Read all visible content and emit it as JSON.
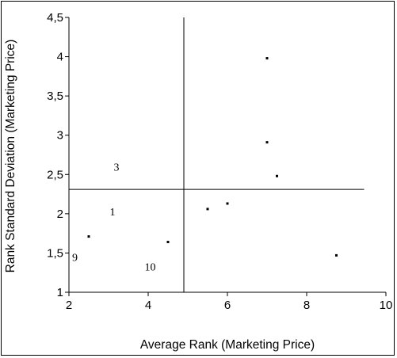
{
  "chart_data": {
    "type": "scatter",
    "xlabel": "Average Rank (Marketing Price)",
    "ylabel": "Rank Standard Deviation (Marketing Price)",
    "xlim": [
      2,
      10
    ],
    "ylim": [
      1,
      4.5
    ],
    "x_ticks": [
      {
        "value": 2,
        "label": "2"
      },
      {
        "value": 4,
        "label": "4"
      },
      {
        "value": 6,
        "label": "6"
      },
      {
        "value": 8,
        "label": "8"
      },
      {
        "value": 10,
        "label": "10"
      }
    ],
    "y_ticks": [
      {
        "value": 1,
        "label": "1"
      },
      {
        "value": 1.5,
        "label": "1,5"
      },
      {
        "value": 2,
        "label": "2"
      },
      {
        "value": 2.5,
        "label": "2,5"
      },
      {
        "value": 3,
        "label": "3"
      },
      {
        "value": 3.5,
        "label": "3,5"
      },
      {
        "value": 4,
        "label": "4"
      },
      {
        "value": 4.5,
        "label": "4,5"
      }
    ],
    "points": [
      {
        "x": 2.5,
        "y": 1.71
      },
      {
        "x": 4.5,
        "y": 1.64
      },
      {
        "x": 5.5,
        "y": 2.06
      },
      {
        "x": 6.0,
        "y": 2.13
      },
      {
        "x": 7.0,
        "y": 3.98
      },
      {
        "x": 7.0,
        "y": 2.91
      },
      {
        "x": 7.25,
        "y": 2.48
      },
      {
        "x": 8.75,
        "y": 1.47
      }
    ],
    "reference_lines": {
      "vertical_x": 4.9,
      "horizontal_y": 2.31
    },
    "annotations": [
      {
        "text": "3",
        "x": 3.2,
        "y": 2.6
      },
      {
        "text": "1",
        "x": 3.1,
        "y": 2.03
      },
      {
        "text": "9",
        "x": 2.15,
        "y": 1.45
      },
      {
        "text": "10",
        "x": 4.05,
        "y": 1.33
      }
    ],
    "grid": false,
    "legend": "none",
    "colors": {
      "marks": "#000000",
      "background": "#ffffff"
    }
  }
}
